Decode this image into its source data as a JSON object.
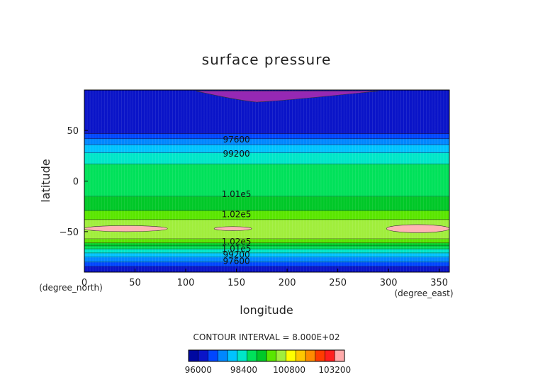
{
  "chart_data": {
    "type": "heatmap",
    "title": "surface pressure",
    "xlabel": "longitude",
    "ylabel": "latitude",
    "x_unit": "(degree_east)",
    "y_unit": "(degree_north)",
    "xlim": [
      0,
      360
    ],
    "ylim": [
      -90,
      90
    ],
    "x_ticks": [
      "0",
      "50",
      "100",
      "150",
      "200",
      "250",
      "300",
      "350"
    ],
    "y_ticks": [
      "50",
      "0",
      "−50"
    ],
    "contour_interval_text": "CONTOUR INTERVAL = 8.000E+02",
    "contour_interval": 800,
    "levels_min": 96000,
    "levels_max": 103200,
    "colorbar_ticks": [
      "96000",
      "98400",
      "100800",
      "103200"
    ],
    "colors": [
      "#0a14c8",
      "#0046ff",
      "#0087ff",
      "#00c3ff",
      "#00e6c8",
      "#00e15a",
      "#00c828",
      "#5ae600",
      "#a0ee3c",
      "#ffff00",
      "#ffc800",
      "#ff8c00",
      "#ff3c00",
      "#ff1e1e"
    ],
    "band_color_low": "#0008a0",
    "band_color_high": "#ffaaaa",
    "high_pressure_color": "#ffb4b4",
    "low_pressure_color": "#9628b4",
    "zonal_profile": [
      {
        "lat": -90,
        "value": 96000
      },
      {
        "lat": -85,
        "value": 96500
      },
      {
        "lat": -80,
        "value": 97600
      },
      {
        "lat": -75,
        "value": 98400
      },
      {
        "lat": -71,
        "value": 99200
      },
      {
        "lat": -67,
        "value": 100000
      },
      {
        "lat": -64,
        "value": 100800
      },
      {
        "lat": -61,
        "value": 101600
      },
      {
        "lat": -57,
        "value": 102400
      },
      {
        "lat": -47,
        "value": 102800
      },
      {
        "lat": -40,
        "value": 102600
      },
      {
        "lat": -32,
        "value": 101800
      },
      {
        "lat": -22,
        "value": 101200
      },
      {
        "lat": -12,
        "value": 100600
      },
      {
        "lat": 0,
        "value": 100400
      },
      {
        "lat": 15,
        "value": 100200
      },
      {
        "lat": 22,
        "value": 99600
      },
      {
        "lat": 28,
        "value": 99200
      },
      {
        "lat": 33,
        "value": 98600
      },
      {
        "lat": 38,
        "value": 98200
      },
      {
        "lat": 42,
        "value": 97600
      },
      {
        "lat": 46,
        "value": 97000
      },
      {
        "lat": 50,
        "value": 96400
      },
      {
        "lat": 60,
        "value": 96200
      },
      {
        "lat": 90,
        "value": 96200
      }
    ],
    "contour_labels": [
      {
        "text": "97600",
        "lon": 150,
        "lat": 41
      },
      {
        "text": "99200",
        "lon": 150,
        "lat": 27
      },
      {
        "text": "1.01e5",
        "lon": 150,
        "lat": -13
      },
      {
        "text": "1.02e5",
        "lon": 150,
        "lat": -33
      },
      {
        "text": "1.02e5",
        "lon": 150,
        "lat": -60
      },
      {
        "text": "1.01e5",
        "lon": 150,
        "lat": -67
      },
      {
        "text": "99200",
        "lon": 150,
        "lat": -73
      },
      {
        "text": "97600",
        "lon": 150,
        "lat": -79
      }
    ],
    "highs": [
      {
        "lon_min": 0,
        "lon_max": 82,
        "lat_min": -50,
        "lat_max": -44
      },
      {
        "lon_min": 128,
        "lon_max": 165,
        "lat_min": -49,
        "lat_max": -45
      },
      {
        "lon_min": 298,
        "lon_max": 360,
        "lat_min": -51,
        "lat_max": -43
      }
    ],
    "lows": [
      {
        "lon_min": 110,
        "lon_max": 290,
        "lat_min": 78,
        "lat_max": 89
      }
    ]
  }
}
